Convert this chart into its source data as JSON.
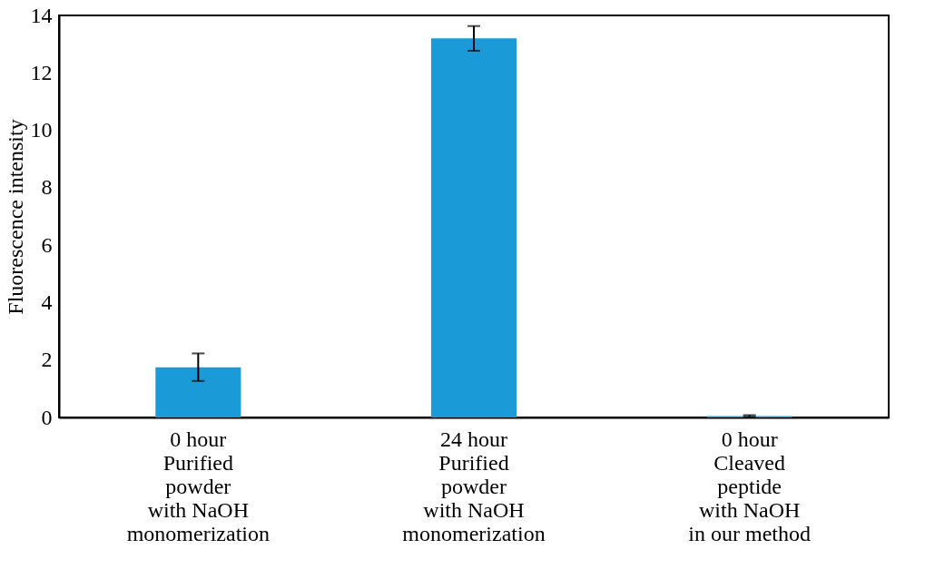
{
  "chart_data": {
    "type": "bar",
    "ylabel": "Fluorescence intensity",
    "categories": [
      "0 hour\nPurified\npowder\nwith NaOH\nmonomerization",
      "24 hour\nPurified\npowder\nwith NaOH\nmonomerization",
      "0 hour\nCleaved\npeptide\nwith NaOH\nin our method"
    ],
    "values": [
      1.75,
      13.2,
      0.05
    ],
    "errors": [
      0.48,
      0.43,
      0.03
    ],
    "color": "#1a9bd7",
    "ylim": [
      0,
      14
    ],
    "yticks": [
      0,
      2,
      4,
      6,
      8,
      10,
      12,
      14
    ],
    "grid": false
  }
}
